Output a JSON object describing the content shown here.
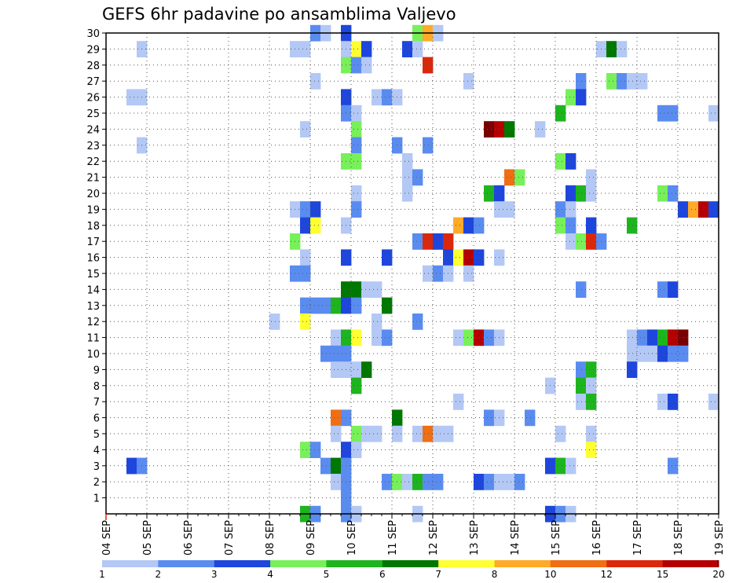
{
  "chart_data": {
    "type": "heatmap",
    "title": "GEFS 6hr padavine po ansamblima Valjevo",
    "xlabel": "",
    "ylabel": "",
    "x_ticks": [
      "04 SEP",
      "05 SEP",
      "06 SEP",
      "07 SEP",
      "08 SEP",
      "09 SEP",
      "10 SEP",
      "11 SEP",
      "12 SEP",
      "13 SEP",
      "14 SEP",
      "15 SEP",
      "16 SEP",
      "17 SEP",
      "18 SEP",
      "19 SEP"
    ],
    "y_ticks": [
      1,
      2,
      3,
      4,
      5,
      6,
      7,
      8,
      9,
      10,
      11,
      12,
      13,
      14,
      15,
      16,
      17,
      18,
      19,
      20,
      21,
      22,
      23,
      24,
      25,
      26,
      27,
      28,
      29,
      30
    ],
    "x_range": [
      0,
      60
    ],
    "y_range": [
      0,
      30
    ],
    "grid": true,
    "legend_position": "bottom",
    "legend": {
      "labels": [
        "1",
        "2",
        "3",
        "4",
        "5",
        "6",
        "7",
        "8",
        "10",
        "12",
        "15",
        "20"
      ],
      "colors": [
        "#b4c8f5",
        "#5a8cf0",
        "#1e46dc",
        "#78f05a",
        "#1eb41e",
        "#007800",
        "#ffff32",
        "#ffaa28",
        "#f06e14",
        "#dc280a",
        "#b40000",
        "#780000"
      ]
    },
    "cells_note": "each cell = [x index (6-hour step from 04 SEP 00Z), ensemble member, precipitation class 1-12]",
    "cells": [
      [
        20,
        30,
        2
      ],
      [
        21,
        30,
        1
      ],
      [
        23,
        30,
        3
      ],
      [
        30,
        30,
        4
      ],
      [
        31,
        30,
        8
      ],
      [
        32,
        30,
        1
      ],
      [
        3,
        29,
        1
      ],
      [
        18,
        29,
        1
      ],
      [
        19,
        29,
        1
      ],
      [
        23,
        29,
        1
      ],
      [
        24,
        29,
        7
      ],
      [
        25,
        29,
        3
      ],
      [
        29,
        29,
        3
      ],
      [
        30,
        29,
        1
      ],
      [
        48,
        29,
        1
      ],
      [
        49,
        29,
        6
      ],
      [
        50,
        29,
        1
      ],
      [
        23,
        28,
        4
      ],
      [
        24,
        28,
        2
      ],
      [
        25,
        28,
        1
      ],
      [
        31,
        28,
        10
      ],
      [
        20,
        27,
        1
      ],
      [
        35,
        27,
        1
      ],
      [
        46,
        27,
        2
      ],
      [
        49,
        27,
        4
      ],
      [
        50,
        27,
        2
      ],
      [
        51,
        27,
        1
      ],
      [
        52,
        27,
        1
      ],
      [
        2,
        26,
        1
      ],
      [
        3,
        26,
        1
      ],
      [
        23,
        26,
        3
      ],
      [
        26,
        26,
        1
      ],
      [
        27,
        26,
        2
      ],
      [
        28,
        26,
        1
      ],
      [
        45,
        26,
        4
      ],
      [
        46,
        26,
        3
      ],
      [
        23,
        25,
        2
      ],
      [
        24,
        25,
        1
      ],
      [
        44,
        25,
        5
      ],
      [
        54,
        25,
        2
      ],
      [
        55,
        25,
        2
      ],
      [
        59,
        25,
        1
      ],
      [
        19,
        24,
        1
      ],
      [
        24,
        24,
        4
      ],
      [
        37,
        24,
        12
      ],
      [
        38,
        24,
        11
      ],
      [
        39,
        24,
        6
      ],
      [
        42,
        24,
        1
      ],
      [
        3,
        23,
        1
      ],
      [
        24,
        23,
        2
      ],
      [
        28,
        23,
        2
      ],
      [
        31,
        23,
        2
      ],
      [
        23,
        22,
        4
      ],
      [
        24,
        22,
        4
      ],
      [
        29,
        22,
        1
      ],
      [
        44,
        22,
        4
      ],
      [
        45,
        22,
        3
      ],
      [
        29,
        21,
        1
      ],
      [
        30,
        21,
        2
      ],
      [
        39,
        21,
        9
      ],
      [
        40,
        21,
        4
      ],
      [
        47,
        21,
        1
      ],
      [
        24,
        20,
        1
      ],
      [
        29,
        20,
        1
      ],
      [
        37,
        20,
        5
      ],
      [
        38,
        20,
        3
      ],
      [
        45,
        20,
        3
      ],
      [
        46,
        20,
        5
      ],
      [
        47,
        20,
        1
      ],
      [
        54,
        20,
        4
      ],
      [
        55,
        20,
        2
      ],
      [
        18,
        19,
        1
      ],
      [
        19,
        19,
        2
      ],
      [
        20,
        19,
        3
      ],
      [
        24,
        19,
        2
      ],
      [
        38,
        19,
        1
      ],
      [
        39,
        19,
        1
      ],
      [
        44,
        19,
        2
      ],
      [
        45,
        19,
        1
      ],
      [
        56,
        19,
        3
      ],
      [
        57,
        19,
        8
      ],
      [
        58,
        19,
        11
      ],
      [
        59,
        19,
        3
      ],
      [
        19,
        18,
        3
      ],
      [
        20,
        18,
        7
      ],
      [
        23,
        18,
        1
      ],
      [
        34,
        18,
        8
      ],
      [
        35,
        18,
        3
      ],
      [
        36,
        18,
        2
      ],
      [
        44,
        18,
        4
      ],
      [
        45,
        18,
        2
      ],
      [
        47,
        18,
        3
      ],
      [
        51,
        18,
        5
      ],
      [
        18,
        17,
        4
      ],
      [
        30,
        17,
        2
      ],
      [
        31,
        17,
        10
      ],
      [
        32,
        17,
        3
      ],
      [
        33,
        17,
        10
      ],
      [
        45,
        17,
        1
      ],
      [
        46,
        17,
        4
      ],
      [
        47,
        17,
        10
      ],
      [
        48,
        17,
        2
      ],
      [
        19,
        16,
        1
      ],
      [
        23,
        16,
        3
      ],
      [
        27,
        16,
        3
      ],
      [
        33,
        16,
        3
      ],
      [
        34,
        16,
        7
      ],
      [
        35,
        16,
        11
      ],
      [
        36,
        16,
        3
      ],
      [
        38,
        16,
        1
      ],
      [
        18,
        15,
        2
      ],
      [
        19,
        15,
        2
      ],
      [
        31,
        15,
        1
      ],
      [
        32,
        15,
        2
      ],
      [
        33,
        15,
        1
      ],
      [
        35,
        15,
        1
      ],
      [
        23,
        14,
        6
      ],
      [
        24,
        14,
        6
      ],
      [
        25,
        14,
        1
      ],
      [
        26,
        14,
        1
      ],
      [
        46,
        14,
        2
      ],
      [
        54,
        14,
        2
      ],
      [
        55,
        14,
        3
      ],
      [
        19,
        13,
        2
      ],
      [
        20,
        13,
        2
      ],
      [
        21,
        13,
        2
      ],
      [
        22,
        13,
        5
      ],
      [
        23,
        13,
        3
      ],
      [
        24,
        13,
        2
      ],
      [
        27,
        13,
        6
      ],
      [
        16,
        12,
        1
      ],
      [
        19,
        12,
        7
      ],
      [
        26,
        12,
        1
      ],
      [
        30,
        12,
        2
      ],
      [
        22,
        11,
        1
      ],
      [
        23,
        11,
        5
      ],
      [
        24,
        11,
        7
      ],
      [
        26,
        11,
        1
      ],
      [
        27,
        11,
        2
      ],
      [
        34,
        11,
        1
      ],
      [
        35,
        11,
        4
      ],
      [
        36,
        11,
        11
      ],
      [
        37,
        11,
        2
      ],
      [
        38,
        11,
        1
      ],
      [
        51,
        11,
        1
      ],
      [
        52,
        11,
        2
      ],
      [
        53,
        11,
        3
      ],
      [
        54,
        11,
        5
      ],
      [
        55,
        11,
        11
      ],
      [
        56,
        11,
        12
      ],
      [
        21,
        10,
        2
      ],
      [
        22,
        10,
        2
      ],
      [
        23,
        10,
        2
      ],
      [
        51,
        10,
        1
      ],
      [
        52,
        10,
        1
      ],
      [
        53,
        10,
        1
      ],
      [
        54,
        10,
        3
      ],
      [
        55,
        10,
        2
      ],
      [
        56,
        10,
        2
      ],
      [
        22,
        9,
        1
      ],
      [
        23,
        9,
        1
      ],
      [
        24,
        9,
        1
      ],
      [
        25,
        9,
        6
      ],
      [
        46,
        9,
        2
      ],
      [
        47,
        9,
        5
      ],
      [
        51,
        9,
        3
      ],
      [
        24,
        8,
        5
      ],
      [
        43,
        8,
        1
      ],
      [
        46,
        8,
        5
      ],
      [
        47,
        8,
        1
      ],
      [
        34,
        7,
        1
      ],
      [
        46,
        7,
        1
      ],
      [
        47,
        7,
        5
      ],
      [
        54,
        7,
        1
      ],
      [
        55,
        7,
        3
      ],
      [
        59,
        7,
        1
      ],
      [
        22,
        6,
        9
      ],
      [
        23,
        6,
        2
      ],
      [
        28,
        6,
        6
      ],
      [
        37,
        6,
        2
      ],
      [
        38,
        6,
        1
      ],
      [
        41,
        6,
        2
      ],
      [
        22,
        5,
        1
      ],
      [
        24,
        5,
        4
      ],
      [
        25,
        5,
        1
      ],
      [
        26,
        5,
        1
      ],
      [
        28,
        5,
        1
      ],
      [
        30,
        5,
        1
      ],
      [
        31,
        5,
        9
      ],
      [
        32,
        5,
        1
      ],
      [
        33,
        5,
        1
      ],
      [
        44,
        5,
        1
      ],
      [
        47,
        5,
        1
      ],
      [
        19,
        4,
        4
      ],
      [
        20,
        4,
        2
      ],
      [
        23,
        4,
        3
      ],
      [
        24,
        4,
        1
      ],
      [
        47,
        4,
        7
      ],
      [
        2,
        3,
        3
      ],
      [
        3,
        3,
        2
      ],
      [
        21,
        3,
        2
      ],
      [
        22,
        3,
        6
      ],
      [
        23,
        3,
        2
      ],
      [
        43,
        3,
        3
      ],
      [
        44,
        3,
        5
      ],
      [
        45,
        3,
        1
      ],
      [
        55,
        3,
        2
      ],
      [
        22,
        2,
        1
      ],
      [
        23,
        2,
        2
      ],
      [
        27,
        2,
        2
      ],
      [
        28,
        2,
        4
      ],
      [
        29,
        2,
        1
      ],
      [
        30,
        2,
        5
      ],
      [
        31,
        2,
        2
      ],
      [
        32,
        2,
        2
      ],
      [
        36,
        2,
        3
      ],
      [
        37,
        2,
        2
      ],
      [
        38,
        2,
        1
      ],
      [
        39,
        2,
        1
      ],
      [
        40,
        2,
        2
      ],
      [
        23,
        1,
        2
      ],
      [
        23,
        0,
        2
      ],
      [
        24,
        0,
        1
      ],
      [
        19,
        0,
        5
      ],
      [
        20,
        0,
        2
      ],
      [
        30,
        0,
        1
      ],
      [
        43,
        0,
        3
      ],
      [
        44,
        0,
        2
      ],
      [
        45,
        0,
        1
      ]
    ]
  }
}
